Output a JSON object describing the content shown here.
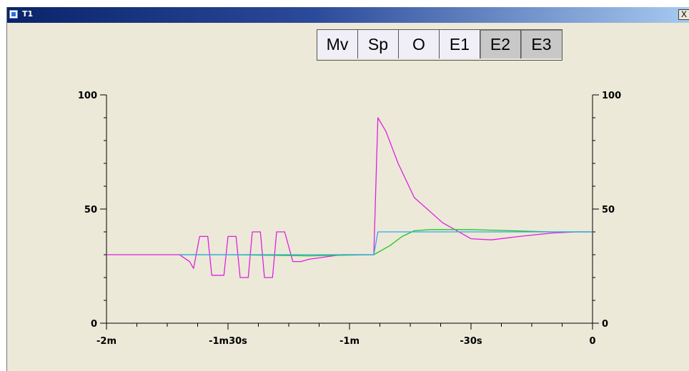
{
  "window": {
    "title": "T1",
    "close_label": "X"
  },
  "toolbar": {
    "buttons": [
      {
        "label": "Mv",
        "pressed": false
      },
      {
        "label": "Sp",
        "pressed": false
      },
      {
        "label": "O",
        "pressed": false
      },
      {
        "label": "E1",
        "pressed": false
      },
      {
        "label": "E2",
        "pressed": true
      },
      {
        "label": "E3",
        "pressed": true
      }
    ]
  },
  "chart_data": {
    "type": "line",
    "title": "",
    "xlabel": "",
    "ylabel": "",
    "xlim": [
      -120,
      0
    ],
    "ylim": [
      0,
      100
    ],
    "grid": false,
    "x_ticks": [
      {
        "value": -120,
        "label": "-2m"
      },
      {
        "value": -90,
        "label": "-1m30s"
      },
      {
        "value": -60,
        "label": "-1m"
      },
      {
        "value": -30,
        "label": "-30s"
      },
      {
        "value": 0,
        "label": "0"
      }
    ],
    "y_ticks_left": [
      {
        "value": 0,
        "label": "0"
      },
      {
        "value": 50,
        "label": "50"
      },
      {
        "value": 100,
        "label": "100"
      }
    ],
    "y_ticks_right": [
      {
        "value": 0,
        "label": "0"
      },
      {
        "value": 50,
        "label": "50"
      },
      {
        "value": 100,
        "label": "100"
      }
    ],
    "series": [
      {
        "color": "#e020e0",
        "points": [
          [
            -120,
            30
          ],
          [
            -102,
            30
          ],
          [
            -99.5,
            27
          ],
          [
            -98.5,
            24
          ],
          [
            -97,
            38
          ],
          [
            -95,
            38
          ],
          [
            -94,
            21
          ],
          [
            -91,
            21
          ],
          [
            -90,
            38
          ],
          [
            -88,
            38
          ],
          [
            -87,
            20
          ],
          [
            -85,
            20
          ],
          [
            -84,
            40
          ],
          [
            -82,
            40
          ],
          [
            -81,
            20
          ],
          [
            -79,
            20
          ],
          [
            -78,
            40
          ],
          [
            -76,
            40
          ],
          [
            -74,
            27
          ],
          [
            -72,
            27
          ],
          [
            -70,
            28
          ],
          [
            -62,
            30
          ],
          [
            -54,
            30
          ],
          [
            -53,
            90
          ],
          [
            -51,
            84
          ],
          [
            -48,
            70
          ],
          [
            -44,
            55
          ],
          [
            -37,
            44
          ],
          [
            -30,
            37
          ],
          [
            -25,
            36.5
          ],
          [
            -18,
            38
          ],
          [
            -10,
            39.5
          ],
          [
            -4,
            40
          ],
          [
            0,
            40
          ]
        ]
      },
      {
        "color": "#20c820",
        "points": [
          [
            -102,
            30
          ],
          [
            -90,
            30
          ],
          [
            -70,
            29.5
          ],
          [
            -54,
            30
          ],
          [
            -50,
            34
          ],
          [
            -47,
            38
          ],
          [
            -44,
            40.5
          ],
          [
            -40,
            41
          ],
          [
            -30,
            41
          ],
          [
            -20,
            40.5
          ],
          [
            -10,
            40
          ],
          [
            0,
            40
          ]
        ]
      },
      {
        "color": "#30a8f0",
        "points": [
          [
            -102,
            30
          ],
          [
            -70,
            30
          ],
          [
            -54,
            30
          ],
          [
            -53,
            40
          ],
          [
            -40,
            40
          ],
          [
            -20,
            40
          ],
          [
            0,
            40
          ]
        ]
      }
    ]
  }
}
